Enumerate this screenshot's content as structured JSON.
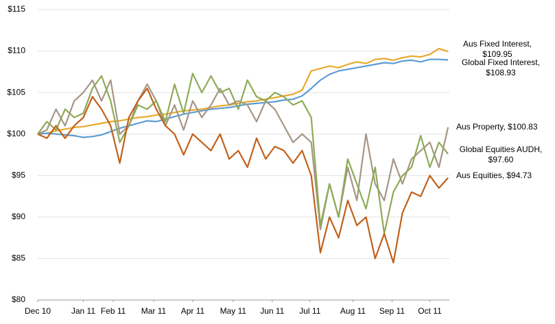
{
  "chart_data": {
    "type": "line",
    "x": [
      0,
      7,
      14,
      21,
      28,
      35,
      42,
      49,
      56,
      63,
      70,
      77,
      84,
      91,
      98,
      105,
      112,
      119,
      126,
      133,
      140,
      147,
      154,
      161,
      168,
      175,
      182,
      189,
      196,
      203,
      210,
      217,
      224,
      231,
      238,
      245,
      252,
      259,
      266,
      273,
      280,
      287,
      294,
      301,
      308,
      315
    ],
    "xlim": [
      0,
      316
    ],
    "xticks": [
      {
        "value": 0,
        "label": "Dec 10"
      },
      {
        "value": 35,
        "label": "Jan 11"
      },
      {
        "value": 58,
        "label": "Feb 11"
      },
      {
        "value": 89,
        "label": "Mar 11"
      },
      {
        "value": 119,
        "label": "Apr 11"
      },
      {
        "value": 150,
        "label": "May 11"
      },
      {
        "value": 180,
        "label": "Jun 11"
      },
      {
        "value": 209,
        "label": "Jul 11"
      },
      {
        "value": 242,
        "label": "Aug 11"
      },
      {
        "value": 272,
        "label": "Sep 11"
      },
      {
        "value": 301,
        "label": "Oct 11"
      }
    ],
    "ylim": [
      80,
      115
    ],
    "yticks": [
      {
        "value": 80,
        "label": "$80"
      },
      {
        "value": 85,
        "label": "$85"
      },
      {
        "value": 90,
        "label": "$90"
      },
      {
        "value": 95,
        "label": "$95"
      },
      {
        "value": 100,
        "label": "$100"
      },
      {
        "value": 105,
        "label": "$105"
      },
      {
        "value": 110,
        "label": "$110"
      },
      {
        "value": 115,
        "label": "$115"
      }
    ],
    "grid": true,
    "series": [
      {
        "label": [
          "Aus Fixed Interest,",
          "$109.95"
        ],
        "color": "#e8a92a",
        "values": [
          100,
          100.1,
          100.4,
          100.6,
          100.8,
          100.9,
          101.1,
          101.3,
          101.5,
          101.6,
          101.8,
          102.0,
          102.1,
          102.3,
          102.4,
          102.6,
          102.8,
          102.9,
          103.0,
          103.2,
          103.4,
          103.5,
          103.7,
          103.9,
          104.0,
          104.2,
          104.4,
          104.6,
          104.8,
          105.3,
          107.6,
          107.9,
          108.2,
          108.0,
          108.4,
          108.7,
          108.5,
          109.0,
          109.1,
          108.9,
          109.2,
          109.4,
          109.3,
          109.6,
          110.3,
          109.95
        ]
      },
      {
        "label": [
          "Global Fixed Interest,",
          "$108.93"
        ],
        "color": "#5b9bd5",
        "values": [
          100,
          100.1,
          100.0,
          99.9,
          99.8,
          99.6,
          99.7,
          99.9,
          100.3,
          100.7,
          101.0,
          101.3,
          101.6,
          101.5,
          101.8,
          102.1,
          102.4,
          102.6,
          102.8,
          103.0,
          103.1,
          103.2,
          103.4,
          103.6,
          103.7,
          103.8,
          103.9,
          104.1,
          104.2,
          104.6,
          105.5,
          106.5,
          107.2,
          107.6,
          107.8,
          108.0,
          108.2,
          108.4,
          108.6,
          108.5,
          108.8,
          108.9,
          108.7,
          109.0,
          109.0,
          108.93
        ]
      },
      {
        "label": [
          "Aus Property,  $100.83"
        ],
        "color": "#a59585",
        "values": [
          100,
          100.5,
          103,
          101,
          104,
          105,
          106.5,
          104,
          106.5,
          100,
          101,
          104,
          106,
          104,
          101,
          103.5,
          100.5,
          104,
          102,
          103.5,
          105.5,
          103.5,
          104,
          103.5,
          101.5,
          104,
          103,
          101,
          99,
          100,
          99,
          88.5,
          94,
          90,
          96,
          92,
          100,
          94,
          92,
          97,
          94,
          97,
          98,
          99,
          96,
          100.83
        ]
      },
      {
        "label": [
          "Global Equities AUDH,",
          "$97.60"
        ],
        "color": "#8daa55",
        "values": [
          100,
          101.5,
          100.5,
          103,
          102,
          102.5,
          105.5,
          107,
          104,
          99,
          101,
          103.5,
          103,
          104,
          101.5,
          106,
          102.5,
          107.3,
          105,
          107,
          105,
          105.5,
          103,
          106.5,
          104.5,
          104,
          105,
          104.5,
          103.5,
          104,
          102,
          89,
          94,
          90,
          97,
          94,
          91,
          96,
          88,
          93,
          95,
          96,
          99.8,
          96,
          99,
          97.6
        ]
      },
      {
        "label": [
          "Aus Equities,  $94.73"
        ],
        "color": "#c0601a",
        "values": [
          100,
          99.5,
          101,
          99.5,
          101,
          102,
          104.5,
          103,
          101,
          96.5,
          102,
          104,
          105.5,
          103,
          101,
          100,
          97.5,
          100,
          99,
          98,
          100,
          97,
          98,
          96,
          99.5,
          97,
          98.5,
          98,
          96.5,
          98,
          95,
          85.7,
          90,
          87.5,
          92,
          89,
          90,
          85,
          88,
          84.5,
          90.5,
          93,
          92.5,
          95,
          93.5,
          94.73
        ]
      }
    ]
  }
}
